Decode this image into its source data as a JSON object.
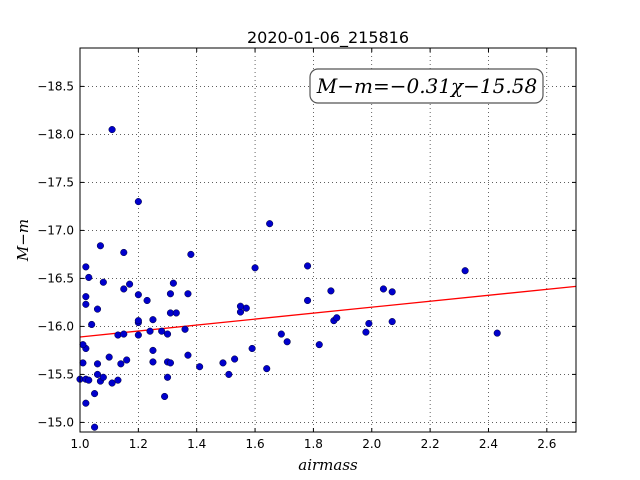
{
  "chart_data": {
    "type": "scatter",
    "title": "2020-01-06_215816",
    "xlabel": "airmass",
    "ylabel": "M−m",
    "xlim": [
      1.0,
      2.7
    ],
    "ylim": [
      -18.9,
      -14.9
    ],
    "y_inverted": true,
    "grid": true,
    "grid_style": "dotted",
    "xticks": [
      1.0,
      1.2,
      1.4,
      1.6,
      1.8,
      2.0,
      2.2,
      2.4,
      2.6
    ],
    "xtick_labels": [
      "1.0",
      "1.2",
      "1.4",
      "1.6",
      "1.8",
      "2.0",
      "2.2",
      "2.4",
      "2.6"
    ],
    "yticks": [
      -15.0,
      -15.5,
      -16.0,
      -16.5,
      -17.0,
      -17.5,
      -18.0,
      -18.5
    ],
    "ytick_labels": [
      "−15.0",
      "−15.5",
      "−16.0",
      "−16.5",
      "−17.0",
      "−17.5",
      "−18.0",
      "−18.5"
    ],
    "annotation": "M−m=−0.31χ−15.58",
    "fit": {
      "slope": -0.31,
      "intercept": -15.58,
      "color": "#ff0000"
    },
    "point_color": "#0000cc",
    "points": [
      [
        1.05,
        -14.95
      ],
      [
        1.02,
        -15.2
      ],
      [
        1.05,
        -15.3
      ],
      [
        1.29,
        -15.27
      ],
      [
        1.0,
        -15.45
      ],
      [
        1.02,
        -15.45
      ],
      [
        1.03,
        -15.44
      ],
      [
        1.07,
        -15.43
      ],
      [
        1.08,
        -15.47
      ],
      [
        1.11,
        -15.41
      ],
      [
        1.13,
        -15.44
      ],
      [
        1.06,
        -15.5
      ],
      [
        1.01,
        -15.62
      ],
      [
        1.06,
        -15.61
      ],
      [
        1.1,
        -15.68
      ],
      [
        1.14,
        -15.61
      ],
      [
        1.16,
        -15.65
      ],
      [
        1.02,
        -15.77
      ],
      [
        1.01,
        -15.81
      ],
      [
        1.13,
        -15.91
      ],
      [
        1.15,
        -15.92
      ],
      [
        1.2,
        -15.91
      ],
      [
        1.04,
        -16.02
      ],
      [
        1.2,
        -16.04
      ],
      [
        1.2,
        -16.06
      ],
      [
        1.06,
        -16.18
      ],
      [
        1.02,
        -16.23
      ],
      [
        1.02,
        -16.31
      ],
      [
        1.15,
        -16.39
      ],
      [
        1.17,
        -16.44
      ],
      [
        1.08,
        -16.46
      ],
      [
        1.03,
        -16.51
      ],
      [
        1.02,
        -16.62
      ],
      [
        1.15,
        -16.77
      ],
      [
        1.07,
        -16.84
      ],
      [
        1.2,
        -17.3
      ],
      [
        1.11,
        -18.05
      ],
      [
        1.25,
        -15.63
      ],
      [
        1.25,
        -15.75
      ],
      [
        1.3,
        -15.63
      ],
      [
        1.31,
        -15.62
      ],
      [
        1.3,
        -15.47
      ],
      [
        1.24,
        -15.95
      ],
      [
        1.28,
        -15.95
      ],
      [
        1.3,
        -15.92
      ],
      [
        1.36,
        -15.97
      ],
      [
        1.25,
        -16.07
      ],
      [
        1.31,
        -16.14
      ],
      [
        1.33,
        -16.14
      ],
      [
        1.23,
        -16.27
      ],
      [
        1.2,
        -16.33
      ],
      [
        1.31,
        -16.34
      ],
      [
        1.37,
        -16.34
      ],
      [
        1.32,
        -16.45
      ],
      [
        1.38,
        -16.75
      ],
      [
        1.37,
        -15.7
      ],
      [
        1.41,
        -15.58
      ],
      [
        1.51,
        -15.5
      ],
      [
        1.49,
        -15.62
      ],
      [
        1.53,
        -15.66
      ],
      [
        1.59,
        -15.77
      ],
      [
        1.64,
        -15.56
      ],
      [
        1.71,
        -15.84
      ],
      [
        1.69,
        -15.92
      ],
      [
        1.82,
        -15.81
      ],
      [
        1.55,
        -16.15
      ],
      [
        1.57,
        -16.19
      ],
      [
        1.55,
        -16.21
      ],
      [
        1.6,
        -16.61
      ],
      [
        1.65,
        -17.07
      ],
      [
        1.78,
        -16.27
      ],
      [
        1.87,
        -16.06
      ],
      [
        1.88,
        -16.09
      ],
      [
        1.86,
        -16.37
      ],
      [
        1.78,
        -16.63
      ],
      [
        1.98,
        -15.94
      ],
      [
        1.99,
        -16.03
      ],
      [
        2.07,
        -16.05
      ],
      [
        2.07,
        -16.36
      ],
      [
        2.04,
        -16.39
      ],
      [
        2.32,
        -16.58
      ],
      [
        2.43,
        -15.93
      ]
    ]
  }
}
